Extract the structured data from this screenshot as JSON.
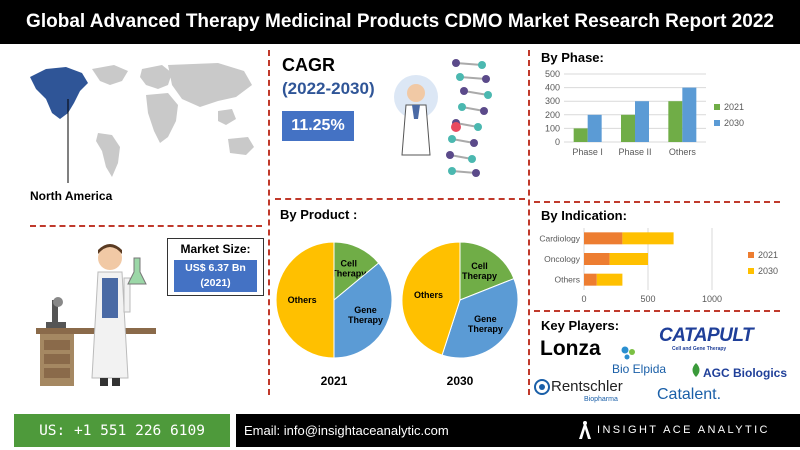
{
  "header": {
    "title": "Global Advanced Therapy Medicinal Products CDMO Market Research Report 2022"
  },
  "region": {
    "label": "North America"
  },
  "market_size": {
    "title": "Market Size:",
    "value_line1": "US$ 6.37 Bn",
    "value_line2": "(2021)"
  },
  "cagr": {
    "title": "CAGR",
    "years": "(2022-2030)",
    "value": "11.25%"
  },
  "sections": {
    "by_phase": "By Phase:",
    "by_indication": "By Indication:",
    "by_product": "By Product :",
    "key_players": "Key Players:"
  },
  "key_players": {
    "lonza": "Lonza",
    "catapult": "CATAPULT",
    "catapult_sub": "Cell and Gene Therapy",
    "bioelpida": "Bio Elpida",
    "agc": "AGC Biologics",
    "rentschler": "Rentschler",
    "rentschler_sub": "Biopharma",
    "catalent": "Catalent."
  },
  "footer": {
    "phone": "US: +1 551 226 6109",
    "email": "Email: info@insightaceanalytic.com",
    "brand": "INSIGHT ACE ANALYTIC"
  },
  "colors": {
    "blue": "#5b9bd5",
    "green": "#70ad47",
    "orange": "#ed7d31",
    "yellow": "#ffc000",
    "accent_red": "#c0392b"
  },
  "chart_data": [
    {
      "type": "bar",
      "title": "By Phase:",
      "categories": [
        "Phase I",
        "Phase II",
        "Others"
      ],
      "series": [
        {
          "name": "2021",
          "values": [
            100,
            200,
            300
          ],
          "color": "#70ad47"
        },
        {
          "name": "2030",
          "values": [
            200,
            300,
            400
          ],
          "color": "#5b9bd5"
        }
      ],
      "ylim": [
        0,
        500
      ],
      "yticks": [
        0,
        100,
        200,
        300,
        400,
        500
      ],
      "grid": true,
      "legend": "right"
    },
    {
      "type": "bar",
      "orientation": "horizontal",
      "stacked": true,
      "title": "By Indication:",
      "categories": [
        "Cardiology",
        "Oncology",
        "Others"
      ],
      "series": [
        {
          "name": "2021",
          "values": [
            300,
            200,
            100
          ],
          "color": "#ed7d31"
        },
        {
          "name": "2030",
          "values": [
            400,
            300,
            200
          ],
          "color": "#ffc000"
        }
      ],
      "xlim": [
        0,
        1000
      ],
      "xticks": [
        0,
        500,
        1000
      ],
      "grid": true,
      "legend": "right"
    },
    {
      "type": "pie",
      "title": "By Product :",
      "chart_label": "2021",
      "labels": [
        "Cell Therapy",
        "Gene Therapy",
        "Others"
      ],
      "label_lines": [
        [
          "Cell",
          "Therapy"
        ],
        [
          "Gene",
          "Therapy"
        ],
        [
          "Others"
        ]
      ],
      "values": [
        14,
        36,
        50
      ],
      "colors": [
        "#70ad47",
        "#5b9bd5",
        "#ffc000"
      ]
    },
    {
      "type": "pie",
      "title": "By Product :",
      "chart_label": "2030",
      "labels": [
        "Cell Therapy",
        "Gene Therapy",
        "Others"
      ],
      "label_lines": [
        [
          "Cell",
          "Therapy"
        ],
        [
          "Gene",
          "Therapy"
        ],
        [
          "Others"
        ]
      ],
      "values": [
        19,
        36,
        45
      ],
      "colors": [
        "#70ad47",
        "#5b9bd5",
        "#ffc000"
      ]
    }
  ]
}
